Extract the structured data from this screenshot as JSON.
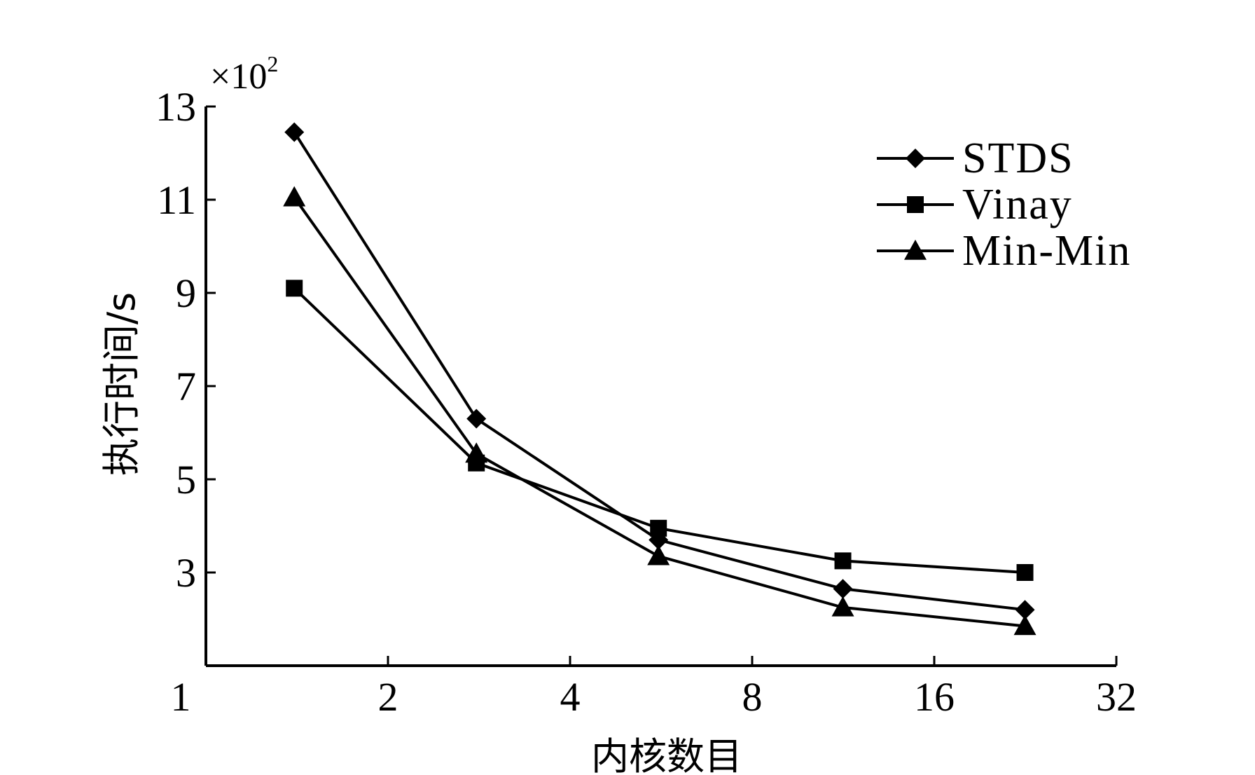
{
  "chart_data": {
    "type": "line",
    "title": "",
    "xlabel": "内核数目",
    "ylabel": "执行时间/s",
    "y_multiplier": {
      "base": "×10",
      "exponent": "2"
    },
    "x_scale": "log2",
    "xlim": [
      1,
      32
    ],
    "ylim": [
      1,
      13
    ],
    "x_ticks": [
      1,
      2,
      4,
      8,
      16,
      32
    ],
    "x_tick_labels": [
      "1",
      "2",
      "4",
      "8",
      "16",
      "32"
    ],
    "y_ticks": [
      3,
      5,
      7,
      9,
      11,
      13
    ],
    "y_tick_labels": [
      "3",
      "5",
      "7",
      "9",
      "11",
      "13"
    ],
    "grid": false,
    "legend_position": "top-right",
    "x": [
      1.4,
      2.8,
      5.6,
      11.3,
      22.6
    ],
    "series": [
      {
        "name": "STDS",
        "marker": "diamond",
        "values": [
          12.45,
          6.3,
          3.7,
          2.65,
          2.2
        ]
      },
      {
        "name": "Vinay",
        "marker": "square",
        "values": [
          9.1,
          5.35,
          3.95,
          3.25,
          3.0
        ]
      },
      {
        "name": "Min-Min",
        "marker": "triangle",
        "values": [
          11.05,
          5.55,
          3.35,
          2.25,
          1.85
        ]
      }
    ]
  }
}
